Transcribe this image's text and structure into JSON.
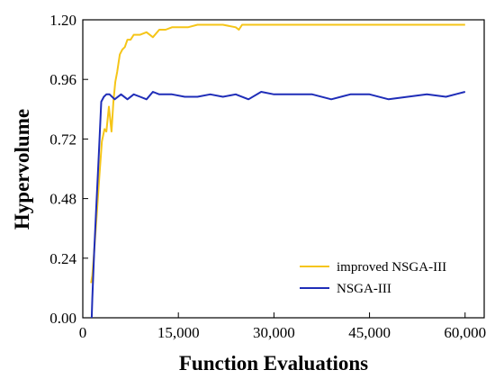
{
  "chart_data": {
    "type": "line",
    "title": "",
    "xlabel": "Function Evaluations",
    "ylabel": "Hypervolume",
    "xlim": [
      0,
      63000
    ],
    "ylim": [
      0,
      1.2
    ],
    "x_ticks": [
      "0",
      "15,000",
      "30,000",
      "45,000",
      "60,000"
    ],
    "x_tick_values": [
      0,
      15000,
      30000,
      45000,
      60000
    ],
    "y_ticks": [
      "0.00",
      "0.24",
      "0.48",
      "0.72",
      "0.96",
      "1.20"
    ],
    "y_tick_values": [
      0,
      0.24,
      0.48,
      0.72,
      0.96,
      1.2
    ],
    "grid": false,
    "legend_position": "bottom-right",
    "series": [
      {
        "name": "improved NSGA-III",
        "color": "#F5C518",
        "x": [
          1300,
          1500,
          1800,
          2200,
          2600,
          3000,
          3400,
          3700,
          4100,
          4500,
          4800,
          5100,
          5400,
          5800,
          6200,
          6600,
          7000,
          7500,
          8000,
          9000,
          10000,
          11000,
          12000,
          13000,
          14000,
          15000,
          16500,
          18000,
          20000,
          22000,
          24000,
          24500,
          25000,
          27000,
          29000,
          30000,
          33000,
          36000,
          39000,
          42000,
          45000,
          48000,
          51000,
          54000,
          57000,
          60000
        ],
        "y": [
          0.14,
          0.17,
          0.27,
          0.42,
          0.57,
          0.71,
          0.76,
          0.75,
          0.85,
          0.75,
          0.87,
          0.95,
          0.99,
          1.06,
          1.08,
          1.09,
          1.12,
          1.12,
          1.14,
          1.14,
          1.15,
          1.13,
          1.16,
          1.16,
          1.17,
          1.17,
          1.17,
          1.18,
          1.18,
          1.18,
          1.17,
          1.16,
          1.18,
          1.18,
          1.18,
          1.18,
          1.18,
          1.18,
          1.18,
          1.18,
          1.18,
          1.18,
          1.18,
          1.18,
          1.18,
          1.18
        ]
      },
      {
        "name": "NSGA-III",
        "color": "#1F2DB8",
        "x": [
          1400,
          1500,
          1800,
          2100,
          2500,
          2900,
          3300,
          3700,
          4200,
          5000,
          6000,
          7000,
          8000,
          9000,
          10000,
          11000,
          12000,
          14000,
          16000,
          18000,
          20000,
          22000,
          24000,
          26000,
          28000,
          30000,
          33000,
          36000,
          39000,
          42000,
          45000,
          48000,
          51000,
          54000,
          57000,
          60000
        ],
        "y": [
          0.0,
          0.08,
          0.27,
          0.44,
          0.65,
          0.87,
          0.89,
          0.9,
          0.9,
          0.88,
          0.9,
          0.88,
          0.9,
          0.89,
          0.88,
          0.91,
          0.9,
          0.9,
          0.89,
          0.89,
          0.9,
          0.89,
          0.9,
          0.88,
          0.91,
          0.9,
          0.9,
          0.9,
          0.88,
          0.9,
          0.9,
          0.88,
          0.89,
          0.9,
          0.89,
          0.91
        ]
      }
    ]
  }
}
